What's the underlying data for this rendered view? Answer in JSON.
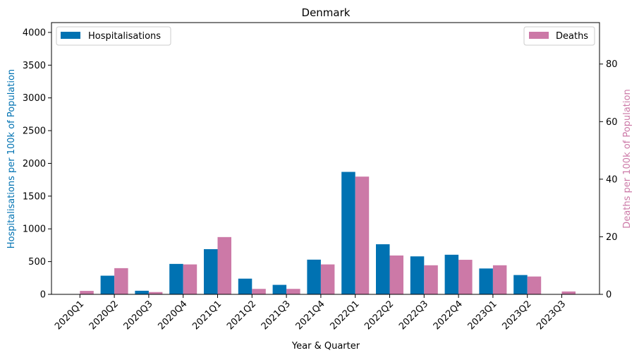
{
  "chart_data": {
    "type": "bar",
    "title": "Denmark",
    "xlabel": "Year & Quarter",
    "ylabel_left": "Hospitalisations per 100k of Population",
    "ylabel_right": "Deaths per 100k of Population",
    "categories": [
      "2020Q1",
      "2020Q2",
      "2020Q3",
      "2020Q4",
      "2021Q1",
      "2021Q2",
      "2021Q3",
      "2021Q4",
      "2022Q1",
      "2022Q2",
      "2022Q3",
      "2022Q4",
      "2023Q1",
      "2023Q2",
      "2023Q3"
    ],
    "series": [
      {
        "name": "Hospitalisations",
        "axis": "left",
        "color": "#0072b2",
        "values": [
          0,
          285,
          55,
          465,
          690,
          240,
          145,
          530,
          1870,
          765,
          580,
          605,
          395,
          295,
          0
        ]
      },
      {
        "name": "Deaths",
        "axis": "right",
        "color": "#cc79a7",
        "values": [
          1.2,
          9.1,
          0.8,
          10.4,
          19.9,
          1.9,
          1.9,
          10.4,
          40.9,
          13.5,
          10.1,
          12.0,
          10.1,
          6.2,
          1.0
        ]
      }
    ],
    "ylim_left": [
      0,
      4150
    ],
    "ylim_right": [
      0,
      94.4
    ],
    "yticks_left": [
      0,
      500,
      1000,
      1500,
      2000,
      2500,
      3000,
      3500,
      4000
    ],
    "yticks_right": [
      0,
      20,
      40,
      60,
      80
    ],
    "legend_left": "top-left",
    "legend_right": "top-right",
    "grid": false
  }
}
